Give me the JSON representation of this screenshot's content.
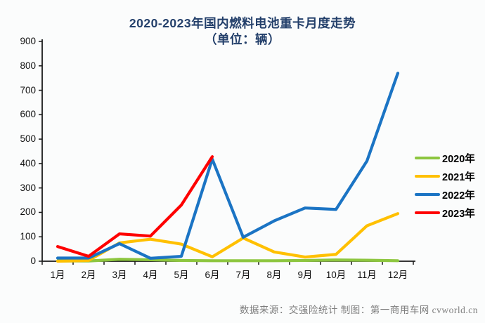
{
  "title": {
    "line1": "2020-2023年国内燃料电池重卡月度走势",
    "line2": "（单位：辆）",
    "color": "#24406b"
  },
  "footer": "数据来源：交强险统计  制图：第一商用车网 cvworld.cn",
  "chart_data": {
    "type": "line",
    "categories": [
      "1月",
      "2月",
      "3月",
      "4月",
      "5月",
      "6月",
      "7月",
      "8月",
      "9月",
      "10月",
      "11月",
      "12月"
    ],
    "series": [
      {
        "name": "2020年",
        "color": "#8dc63f",
        "values": [
          1,
          1,
          8,
          6,
          3,
          2,
          2,
          2,
          3,
          5,
          4,
          2
        ]
      },
      {
        "name": "2021年",
        "color": "#ffc000",
        "values": [
          0,
          3,
          75,
          90,
          70,
          18,
          95,
          38,
          17,
          28,
          145,
          195
        ]
      },
      {
        "name": "2022年",
        "color": "#1b74c4",
        "values": [
          13,
          13,
          72,
          12,
          20,
          418,
          98,
          165,
          218,
          212,
          410,
          770
        ]
      },
      {
        "name": "2023年",
        "color": "#fe0000",
        "values": [
          60,
          20,
          112,
          103,
          230,
          428
        ]
      }
    ],
    "ylim": [
      0,
      900
    ],
    "ytick_step": 100,
    "grid": false,
    "legend_position": "right",
    "axis_color": "#1a1a1a"
  }
}
